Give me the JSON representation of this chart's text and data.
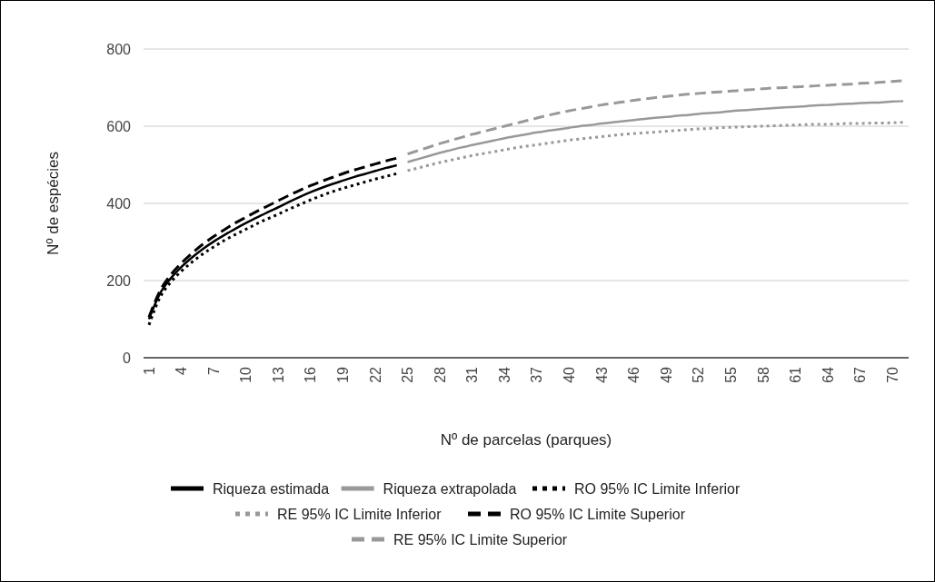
{
  "chart_data": {
    "type": "line",
    "xlabel": "Nº de parcelas (parques)",
    "ylabel": "Nº de espécies",
    "categories": [
      "1",
      null,
      null,
      "4",
      null,
      null,
      "7",
      null,
      null,
      "10",
      null,
      null,
      "13",
      null,
      null,
      "16",
      null,
      null,
      "19",
      null,
      null,
      "22",
      null,
      null,
      "25",
      null,
      null,
      "28",
      null,
      null,
      "31",
      null,
      null,
      "34",
      null,
      null,
      "37",
      null,
      null,
      "40",
      null,
      null,
      "43",
      null,
      null,
      "46",
      null,
      null,
      "49",
      null,
      null,
      "52",
      null,
      null,
      "55",
      null,
      null,
      "58",
      null,
      null,
      "61",
      null,
      null,
      "64",
      null,
      null,
      "67",
      null,
      null,
      "70",
      null
    ],
    "ylim": [
      0,
      800
    ],
    "yticks": [
      0,
      200,
      400,
      600,
      800
    ],
    "grid": "y",
    "legend": "bottom",
    "marker": "none",
    "series": [
      {
        "name": "Riqueza estimada",
        "color": "#000000",
        "line_style": "solid",
        "values": [
          100,
          165,
          205,
          235,
          260,
          282,
          301,
          318,
          334,
          349,
          363,
          377,
          390,
          404,
          417,
          429,
          440,
          450,
          459,
          468,
          476,
          484,
          492,
          499,
          null,
          null,
          null,
          null,
          null,
          null,
          null,
          null,
          null,
          null,
          null,
          null,
          null,
          null,
          null,
          null,
          null,
          null,
          null,
          null,
          null,
          null,
          null,
          null,
          null,
          null,
          null,
          null,
          null,
          null,
          null,
          null,
          null,
          null,
          null,
          null,
          null,
          null,
          null,
          null,
          null,
          null,
          null,
          null,
          null,
          null,
          null
        ]
      },
      {
        "name": "Riqueza extrapolada",
        "color": "#999999",
        "line_style": "solid",
        "values": [
          null,
          null,
          null,
          null,
          null,
          null,
          null,
          null,
          null,
          null,
          null,
          null,
          null,
          null,
          null,
          null,
          null,
          null,
          null,
          null,
          null,
          null,
          null,
          null,
          507,
          515,
          523,
          531,
          538,
          545,
          551,
          557,
          563,
          569,
          574,
          579,
          584,
          588,
          592,
          596,
          600,
          603,
          607,
          610,
          613,
          616,
          619,
          622,
          624,
          627,
          629,
          632,
          634,
          636,
          639,
          641,
          643,
          645,
          647,
          649,
          650,
          652,
          654,
          655,
          657,
          658,
          660,
          661,
          662,
          664,
          665
        ]
      },
      {
        "name": "RO 95% IC Limite Inferior",
        "color": "#000000",
        "line_style": "dotted",
        "values": [
          85,
          155,
          195,
          224,
          248,
          269,
          287,
          304,
          319,
          333,
          347,
          360,
          372,
          385,
          397,
          409,
          420,
          430,
          439,
          447,
          455,
          463,
          470,
          477,
          null,
          null,
          null,
          null,
          null,
          null,
          null,
          null,
          null,
          null,
          null,
          null,
          null,
          null,
          null,
          null,
          null,
          null,
          null,
          null,
          null,
          null,
          null,
          null,
          null,
          null,
          null,
          null,
          null,
          null,
          null,
          null,
          null,
          null,
          null,
          null,
          null,
          null,
          null,
          null,
          null,
          null,
          null,
          null,
          null,
          null,
          null
        ]
      },
      {
        "name": "RE 95% IC Limite Inferior",
        "color": "#999999",
        "line_style": "dotted",
        "values": [
          null,
          null,
          null,
          null,
          null,
          null,
          null,
          null,
          null,
          null,
          null,
          null,
          null,
          null,
          null,
          null,
          null,
          null,
          null,
          null,
          null,
          null,
          null,
          null,
          485,
          492,
          499,
          506,
          512,
          518,
          524,
          529,
          534,
          539,
          544,
          548,
          552,
          556,
          560,
          564,
          567,
          570,
          573,
          576,
          579,
          581,
          583,
          585,
          587,
          589,
          591,
          593,
          594,
          596,
          597,
          598,
          599,
          600,
          601,
          602,
          603,
          604,
          605,
          605,
          606,
          607,
          607,
          608,
          608,
          609,
          610
        ]
      },
      {
        "name": "RO 95% IC Limite Superior",
        "color": "#000000",
        "line_style": "dashed",
        "values": [
          105,
          172,
          214,
          245,
          271,
          294,
          314,
          332,
          349,
          364,
          379,
          393,
          407,
          421,
          434,
          446,
          457,
          467,
          477,
          486,
          494,
          502,
          510,
          517,
          null,
          null,
          null,
          null,
          null,
          null,
          null,
          null,
          null,
          null,
          null,
          null,
          null,
          null,
          null,
          null,
          null,
          null,
          null,
          null,
          null,
          null,
          null,
          null,
          null,
          null,
          null,
          null,
          null,
          null,
          null,
          null,
          null,
          null,
          null,
          null,
          null,
          null,
          null,
          null,
          null,
          null,
          null,
          null,
          null,
          null,
          null
        ]
      },
      {
        "name": "RE 95% IC Limite Superior",
        "color": "#999999",
        "line_style": "dashed",
        "values": [
          null,
          null,
          null,
          null,
          null,
          null,
          null,
          null,
          null,
          null,
          null,
          null,
          null,
          null,
          null,
          null,
          null,
          null,
          null,
          null,
          null,
          null,
          null,
          null,
          528,
          537,
          546,
          555,
          563,
          571,
          579,
          586,
          593,
          600,
          607,
          614,
          621,
          628,
          634,
          640,
          645,
          650,
          655,
          659,
          663,
          667,
          671,
          674,
          677,
          680,
          683,
          685,
          687,
          689,
          691,
          693,
          695,
          697,
          699,
          700,
          702,
          703,
          705,
          706,
          708,
          709,
          711,
          712,
          714,
          716,
          718
        ]
      }
    ]
  }
}
